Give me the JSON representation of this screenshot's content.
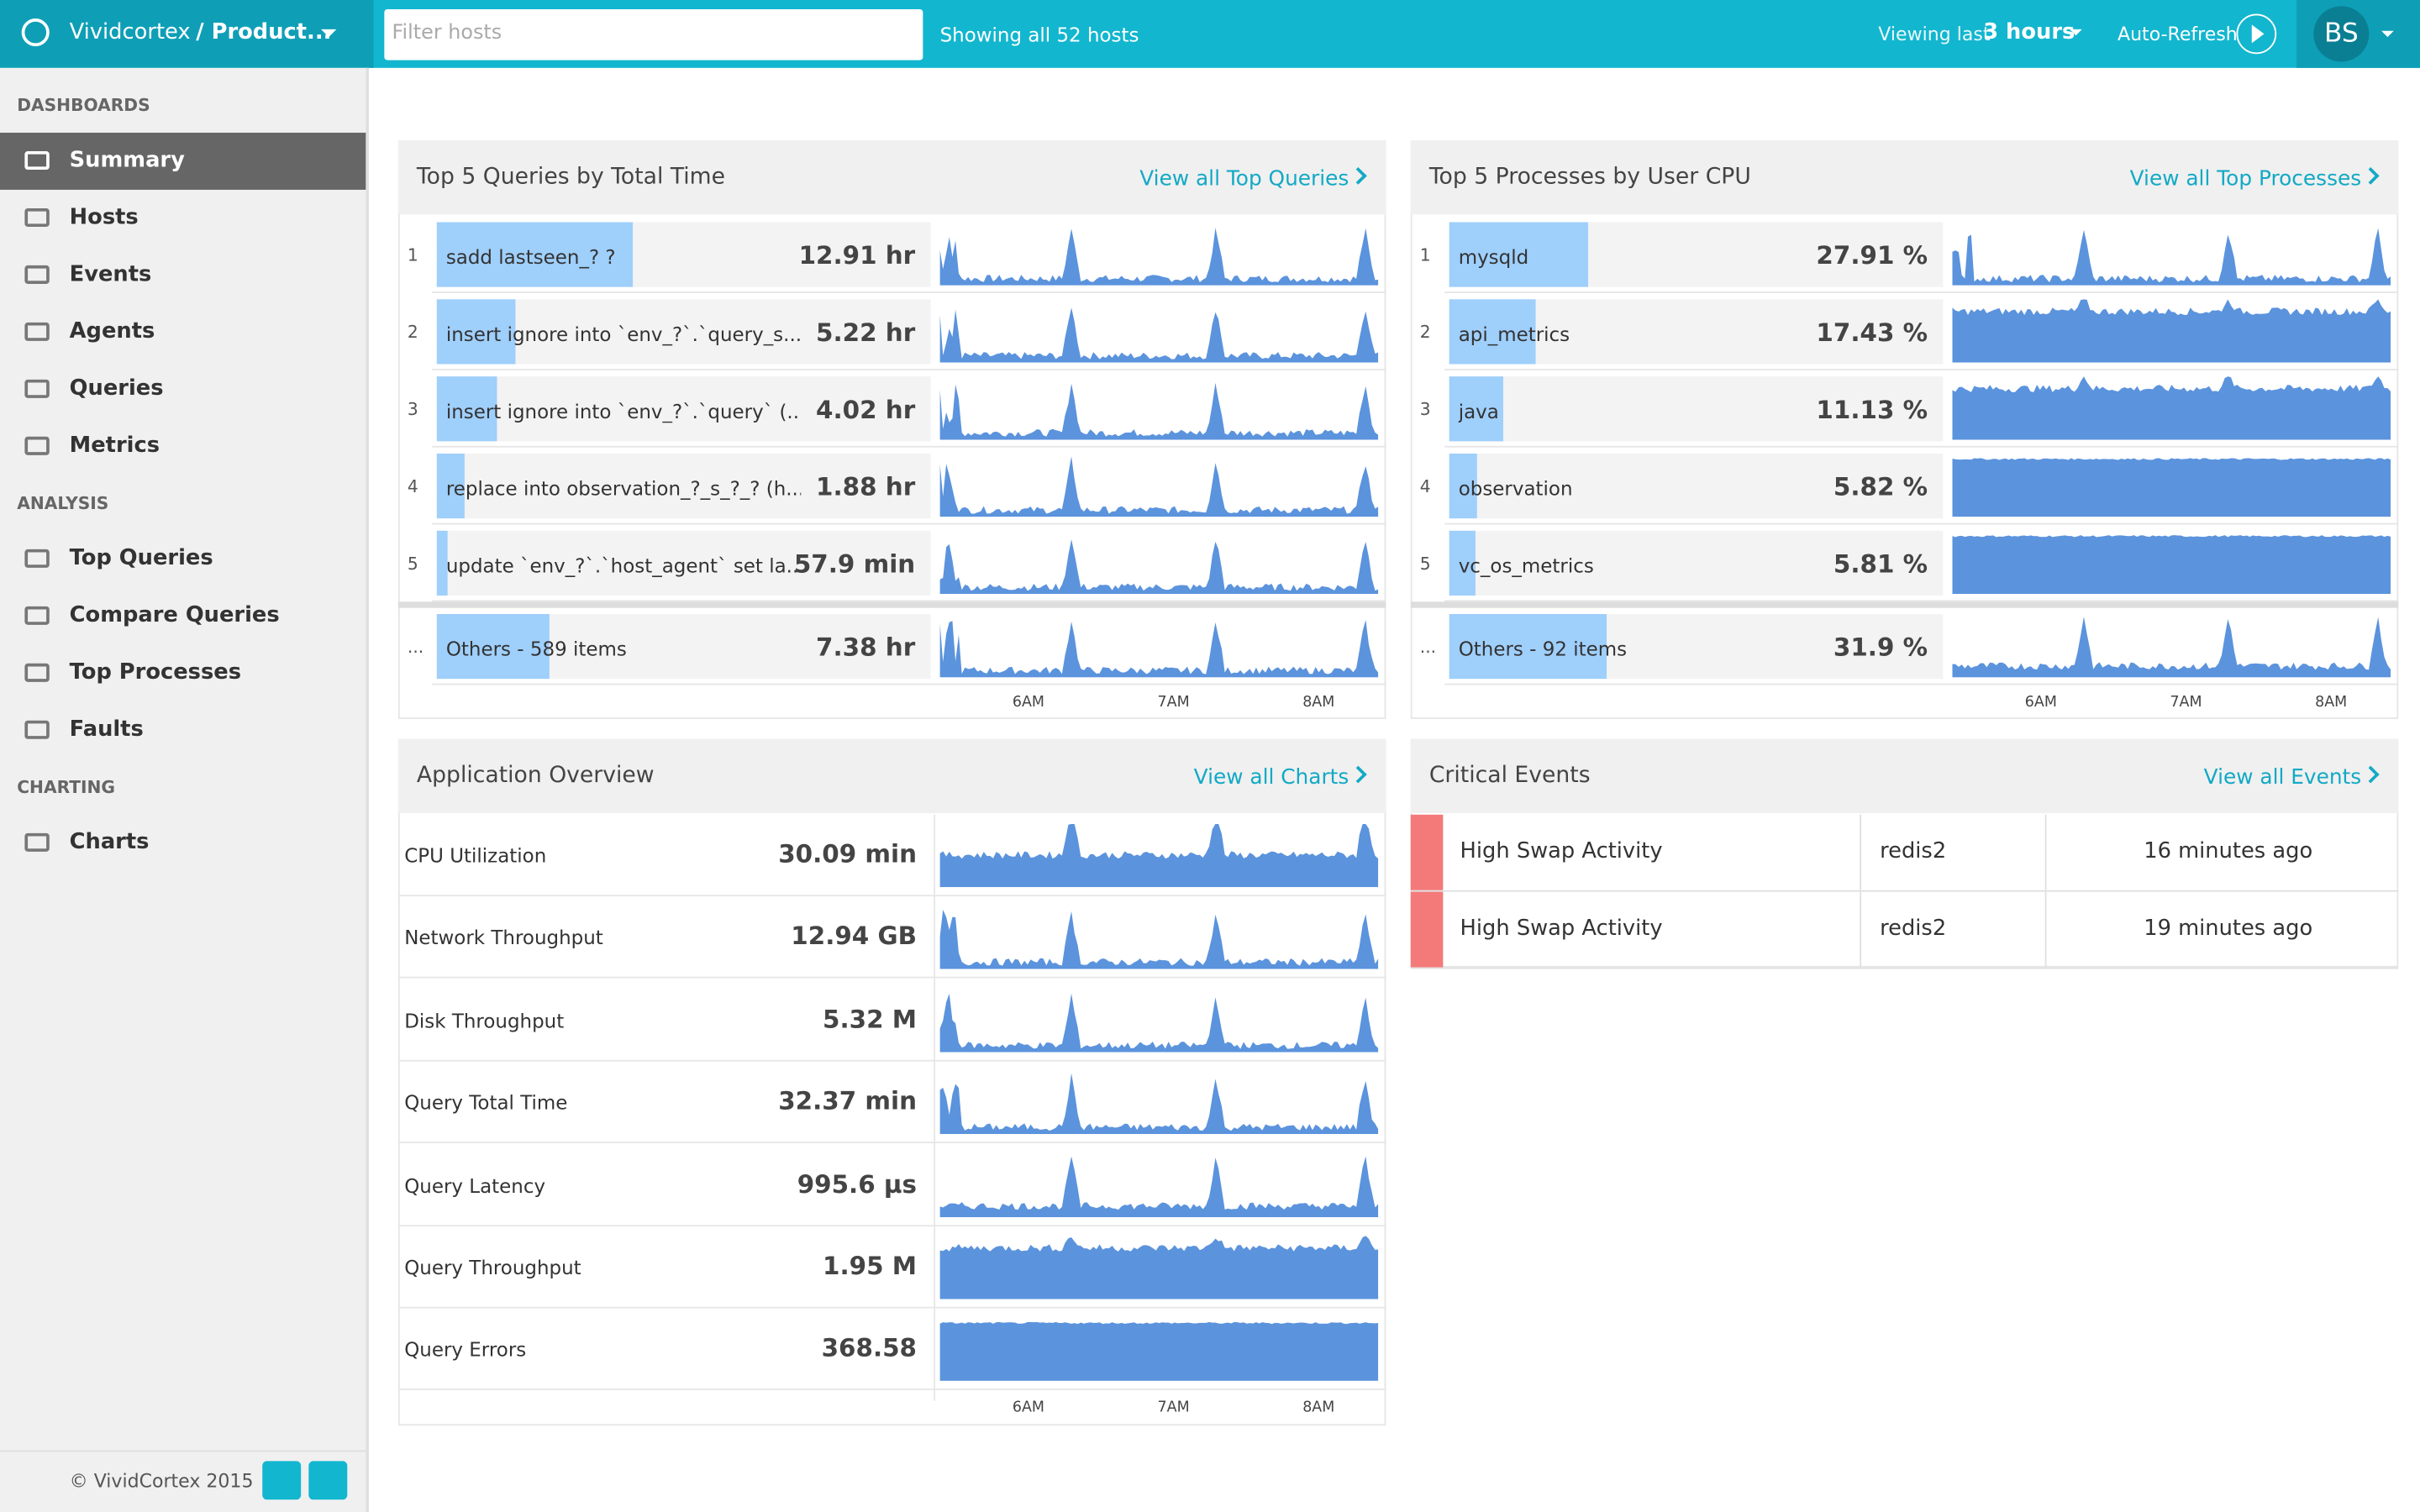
{
  "header": {
    "brand": "Vividcortex",
    "env": "/ Product...",
    "filter_placeholder": "Filter hosts",
    "host_count": "Showing all 52 hosts",
    "viewing": "Viewing last",
    "range": "3 hours",
    "auto_refresh": "Auto-Refresh",
    "avatar": "BS"
  },
  "sidebar": {
    "sections": [
      {
        "title": "DASHBOARDS",
        "items": [
          "Summary",
          "Hosts",
          "Events",
          "Agents",
          "Queries",
          "Metrics"
        ]
      },
      {
        "title": "ANALYSIS",
        "items": [
          "Top Queries",
          "Compare Queries",
          "Top Processes",
          "Faults"
        ]
      },
      {
        "title": "CHARTING",
        "items": [
          "Charts"
        ]
      }
    ],
    "footer": "© VividCortex 2015"
  },
  "top_queries": {
    "title": "Top 5 Queries by Total Time",
    "link": "View all Top Queries",
    "rows": [
      {
        "rank": 1,
        "label": "sadd lastseen_? ?",
        "value": "12.91 hr"
      },
      {
        "rank": 2,
        "label": "insert ignore into `env_?`.`query_s...",
        "value": "5.22 hr"
      },
      {
        "rank": 3,
        "label": "insert ignore into `env_?`.`query` (...",
        "value": "4.02 hr"
      },
      {
        "rank": 4,
        "label": "replace into observation_?_s_?_? (h...",
        "value": "1.88 hr"
      },
      {
        "rank": 5,
        "label": "update `env_?`.`host_agent` set la...",
        "value": "57.9 min"
      }
    ],
    "others": {
      "rank": "...",
      "label": "Others - 589 items",
      "value": "7.38 hr"
    },
    "axis": [
      "6AM",
      "7AM",
      "8AM"
    ]
  },
  "top_processes": {
    "title": "Top 5 Processes by User CPU",
    "link": "View all Top Processes",
    "rows": [
      {
        "rank": 1,
        "label": "mysqld",
        "value": "27.91 %"
      },
      {
        "rank": 2,
        "label": "api_metrics",
        "value": "17.43 %"
      },
      {
        "rank": 3,
        "label": "java",
        "value": "11.13 %"
      },
      {
        "rank": 4,
        "label": "observation",
        "value": "5.82 %"
      },
      {
        "rank": 5,
        "label": "vc_os_metrics",
        "value": "5.81 %"
      }
    ],
    "others": {
      "rank": "...",
      "label": "Others - 92 items",
      "value": "31.9 %"
    },
    "axis": [
      "6AM",
      "7AM",
      "8AM"
    ]
  },
  "app_overview": {
    "title": "Application Overview",
    "link": "View all Charts",
    "rows": [
      {
        "label": "CPU Utilization",
        "value": "30.09 min"
      },
      {
        "label": "Network Throughput",
        "value": "12.94 GB"
      },
      {
        "label": "Disk Throughput",
        "value": "5.32 M"
      },
      {
        "label": "Query Total Time",
        "value": "32.37 min"
      },
      {
        "label": "Query Latency",
        "value": "995.6 µs"
      },
      {
        "label": "Query Throughput",
        "value": "1.95 M"
      },
      {
        "label": "Query Errors",
        "value": "368.58"
      }
    ],
    "axis": [
      "6AM",
      "7AM",
      "8AM"
    ]
  },
  "critical_events": {
    "title": "Critical Events",
    "link": "View all Events",
    "rows": [
      {
        "event": "High Swap Activity",
        "host": "redis2",
        "time": "16 minutes ago"
      },
      {
        "event": "High Swap Activity",
        "host": "redis2",
        "time": "19 minutes ago"
      }
    ]
  }
}
